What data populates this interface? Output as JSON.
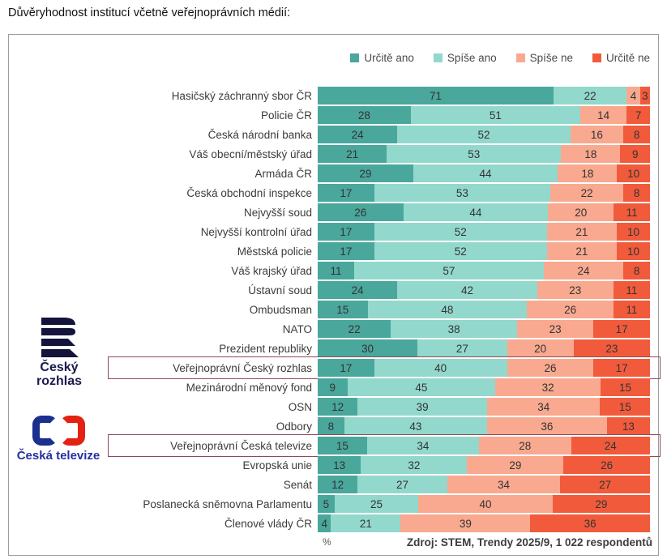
{
  "page_title": "Důvěryhodnost institucí včetně veřejnoprávních médií:",
  "chart_data": {
    "type": "bar",
    "stacked": true,
    "orientation": "horizontal",
    "unit": "%",
    "xlim": [
      0,
      100
    ],
    "grid": false,
    "legend_position": "top-right",
    "categories": [
      "Hasičský záchranný sbor ČR",
      "Policie ČR",
      "Česká národní banka",
      "Váš obecní/městský úřad",
      "Armáda ČR",
      "Česká obchodní inspekce",
      "Nejvyšší soud",
      "Nejvyšší kontrolní úřad",
      "Městská policie",
      "Váš krajský úřad",
      "Ústavní soud",
      "Ombudsman",
      "NATO",
      "Prezident republiky",
      "Veřejnoprávní Český rozhlas",
      "Mezinárodní měnový fond",
      "OSN",
      "Odbory",
      "Veřejnoprávní Česká televize",
      "Evropská unie",
      "Senát",
      "Poslanecká sněmovna Parlamentu",
      "Členové vlády ČR"
    ],
    "series": [
      {
        "name": "Určitě ano",
        "color": "#4aa79c",
        "values": [
          71,
          28,
          24,
          21,
          29,
          17,
          26,
          17,
          17,
          11,
          24,
          15,
          22,
          30,
          17,
          9,
          12,
          8,
          15,
          13,
          12,
          5,
          4
        ]
      },
      {
        "name": "Spíše ano",
        "color": "#93d8cc",
        "values": [
          22,
          51,
          52,
          53,
          44,
          53,
          44,
          52,
          52,
          57,
          42,
          48,
          38,
          27,
          40,
          45,
          39,
          43,
          34,
          32,
          27,
          25,
          21
        ]
      },
      {
        "name": "Spíše ne",
        "color": "#f9a98f",
        "values": [
          4,
          14,
          16,
          18,
          18,
          22,
          20,
          21,
          21,
          24,
          23,
          26,
          23,
          20,
          26,
          32,
          34,
          36,
          28,
          29,
          34,
          40,
          39
        ]
      },
      {
        "name": "Určitě ne",
        "color": "#f15b3c",
        "values": [
          3,
          7,
          8,
          9,
          10,
          8,
          11,
          10,
          10,
          8,
          11,
          11,
          17,
          23,
          17,
          15,
          15,
          13,
          24,
          26,
          27,
          29,
          36
        ]
      }
    ],
    "highlighted_indices": [
      14,
      18
    ],
    "highlighted_categories": [
      "Veřejnoprávní Český rozhlas",
      "Veřejnoprávní Česká televize"
    ],
    "footer_left": "%",
    "source": "Zdroj: STEM, Trendy 2025/9, 1 022 respondentů"
  },
  "logos": {
    "rozhlas": {
      "line1": "Český",
      "line2": "rozhlas",
      "color": "#1a1a4e"
    },
    "televize": {
      "label": "Česká televize",
      "blue": "#1b2f8f",
      "red": "#e32213"
    }
  },
  "colors": {
    "highlight_border": "#8d4b57",
    "panel_border": "#9c9c9c",
    "value_text": "#333333"
  }
}
